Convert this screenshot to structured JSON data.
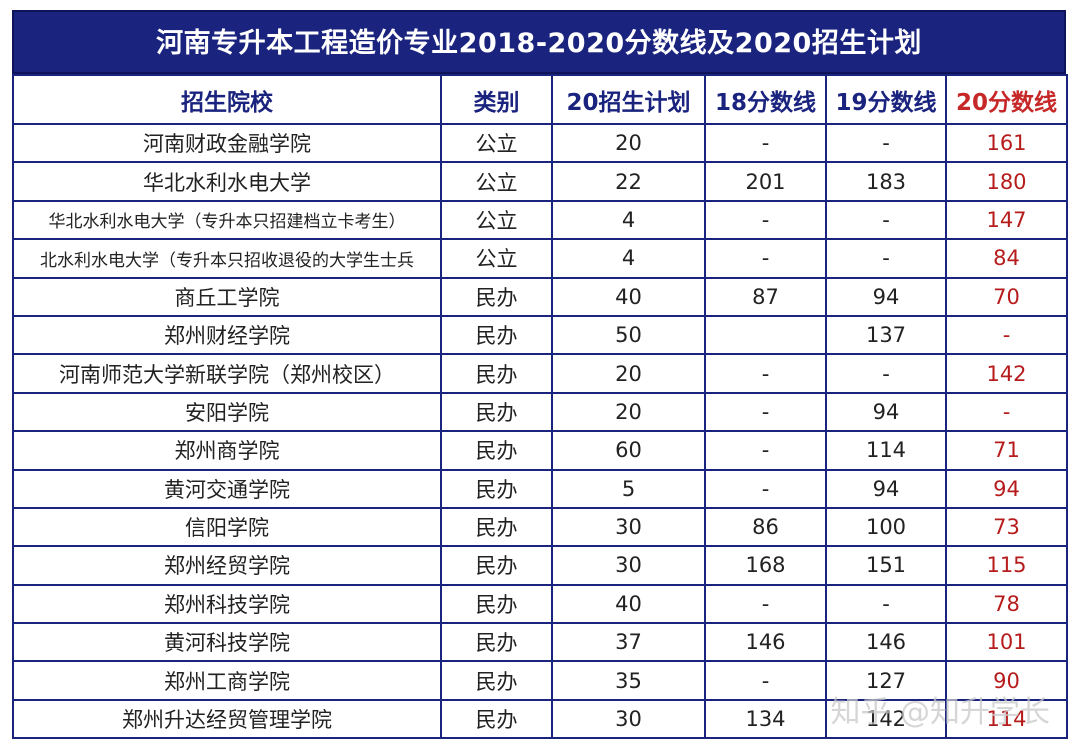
{
  "title": "河南专升本工程造价专业2018-2020分数线及2020招生计划",
  "headers": [
    "招生院校",
    "类别",
    "20招生计划",
    "18分数线",
    "19分数线",
    "20分数线"
  ],
  "rows": [
    [
      "河南财政金融学院",
      "公立",
      "20",
      "-",
      "-",
      "161"
    ],
    [
      "华北水利水电大学",
      "公立",
      "22",
      "201",
      "183",
      "180"
    ],
    [
      "华北水利水电大学（专升本只招建档立卡考生）",
      "公立",
      "4",
      "-",
      "-",
      "147"
    ],
    [
      "北水利水电大学（专升本只招收退役的大学生士兵",
      "公立",
      "4",
      "-",
      "-",
      "84"
    ],
    [
      "商丘工学院",
      "民办",
      "40",
      "87",
      "94",
      "70"
    ],
    [
      "郑州财经学院",
      "民办",
      "50",
      "",
      "137",
      "-"
    ],
    [
      "河南师范大学新联学院（郑州校区）",
      "民办",
      "20",
      "-",
      "-",
      "142"
    ],
    [
      "安阳学院",
      "民办",
      "20",
      "-",
      "94",
      "-"
    ],
    [
      "郑州商学院",
      "民办",
      "60",
      "-",
      "114",
      "71"
    ],
    [
      "黄河交通学院",
      "民办",
      "5",
      "-",
      "94",
      "94"
    ],
    [
      "信阳学院",
      "民办",
      "30",
      "86",
      "100",
      "73"
    ],
    [
      "郑州经贸学院",
      "民办",
      "30",
      "168",
      "151",
      "115"
    ],
    [
      "郑州科技学院",
      "民办",
      "40",
      "-",
      "-",
      "78"
    ],
    [
      "黄河科技学院",
      "民办",
      "37",
      "146",
      "146",
      "101"
    ],
    [
      "郑州工商学院",
      "民办",
      "35",
      "-",
      "127",
      "90"
    ],
    [
      "郑州升达经贸管理学院",
      "民办",
      "30",
      "134",
      "142",
      "114"
    ]
  ],
  "watermark": "知乎 @知升学长",
  "colors": {
    "title_bg": "#1a237e",
    "header_text": "#1a237e",
    "highlight": "#c62828"
  }
}
